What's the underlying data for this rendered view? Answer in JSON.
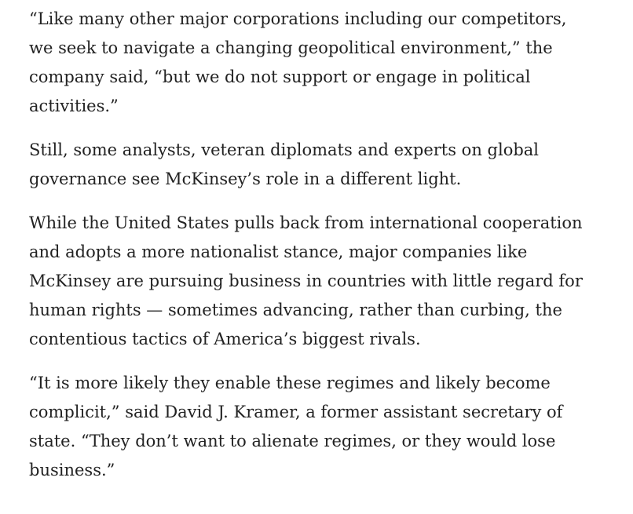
{
  "article": {
    "paragraphs": [
      {
        "lines": [
          "“Like many other major corporations including our competitors,",
          "we seek to navigate a changing geopolitical environment,” the",
          "company said, “but we do not support or engage in political",
          "activities.”"
        ]
      },
      {
        "lines": [
          "Still, some analysts, veteran diplomats and experts on global",
          "governance see McKinsey’s role in a different light."
        ]
      },
      {
        "lines": [
          "While the United States pulls back from international cooperation",
          "and adopts a more nationalist stance, major companies like",
          "McKinsey are pursuing business in countries with little regard for",
          "human rights — sometimes advancing, rather than curbing, the",
          "contentious tactics of America’s biggest rivals."
        ]
      },
      {
        "lines": [
          "“It is more likely they enable these regimes and likely become",
          "complicit,” said David J. Kramer, a former assistant secretary of",
          "state. “They don’t want to alienate regimes, or they would lose",
          "business.”"
        ]
      }
    ]
  }
}
